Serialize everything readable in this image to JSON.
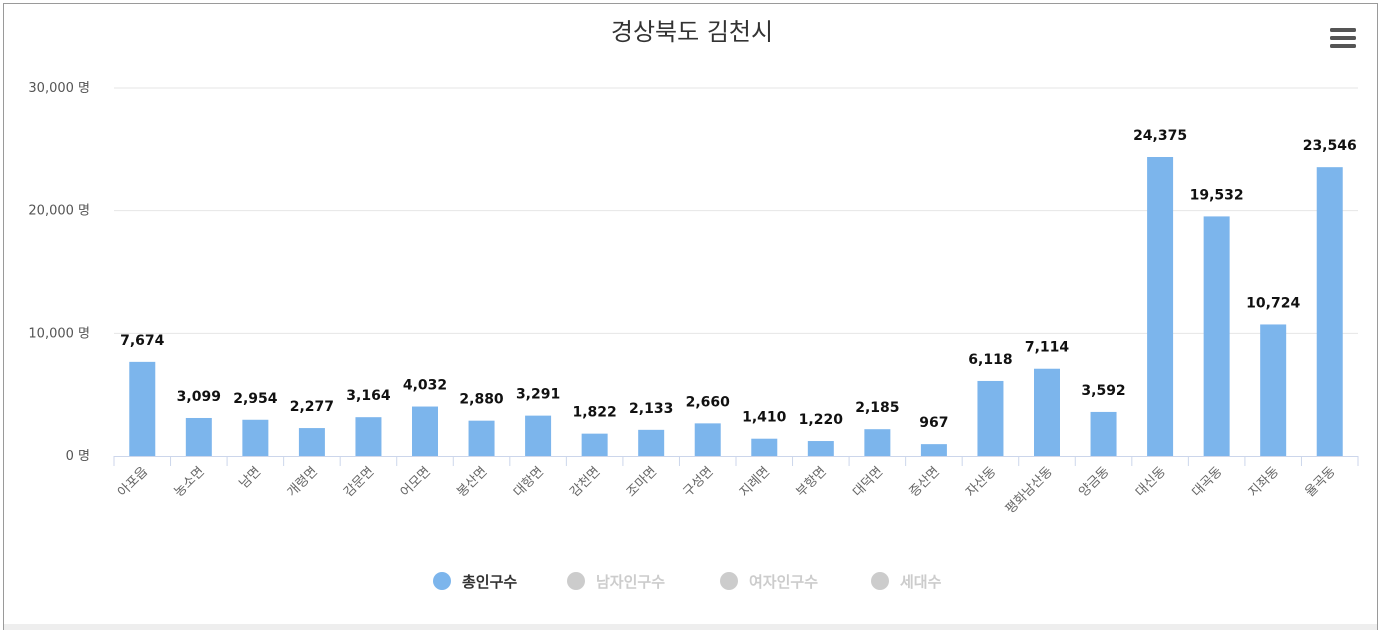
{
  "chart_data": {
    "type": "bar",
    "title": "경상북도 김천시",
    "ylim": [
      0,
      30000
    ],
    "yticks": [
      0,
      10000,
      20000,
      30000
    ],
    "ytick_labels": [
      "0 명",
      "10,000 명",
      "20,000 명",
      "30,000 명"
    ],
    "grid": true,
    "legend_position": "bottom",
    "categories": [
      "아포읍",
      "농소면",
      "남면",
      "개령면",
      "감문면",
      "어모면",
      "봉산면",
      "대항면",
      "감천면",
      "조마면",
      "구성면",
      "지례면",
      "부항면",
      "대덕면",
      "증산면",
      "자산동",
      "평화남산동",
      "양금동",
      "대신동",
      "대곡동",
      "지좌동",
      "율곡동"
    ],
    "series": [
      {
        "name": "총인구수",
        "color": "#7cb5ec",
        "visible": true,
        "values": [
          7674,
          3099,
          2954,
          2277,
          3164,
          4032,
          2880,
          3291,
          1822,
          2133,
          2660,
          1410,
          1220,
          2185,
          967,
          6118,
          7114,
          3592,
          24375,
          19532,
          10724,
          23546
        ],
        "labels": [
          "7,674",
          "3,099",
          "2,954",
          "2,277",
          "3,164",
          "4,032",
          "2,880",
          "3,291",
          "1,822",
          "2,133",
          "2,660",
          "1,410",
          "1,220",
          "2,185",
          "967",
          "6,118",
          "7,114",
          "3,592",
          "24,375",
          "19,532",
          "10,724",
          "23,546"
        ]
      },
      {
        "name": "남자인구수",
        "color": "#cccccc",
        "visible": false
      },
      {
        "name": "여자인구수",
        "color": "#cccccc",
        "visible": false
      },
      {
        "name": "세대수",
        "color": "#cccccc",
        "visible": false
      }
    ]
  },
  "toolbar": {
    "menu_icon": "hamburger-menu-icon"
  }
}
